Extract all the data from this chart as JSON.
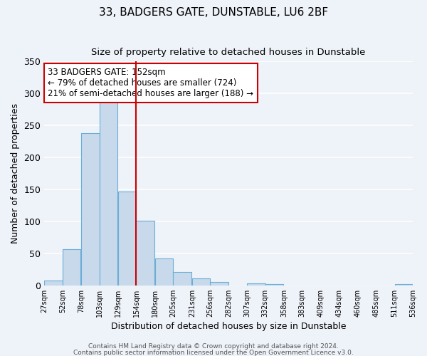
{
  "title": "33, BADGERS GATE, DUNSTABLE, LU6 2BF",
  "subtitle": "Size of property relative to detached houses in Dunstable",
  "xlabel": "Distribution of detached houses by size in Dunstable",
  "ylabel": "Number of detached properties",
  "bar_left_edges": [
    27,
    52,
    78,
    103,
    129,
    154,
    180,
    205,
    231,
    256,
    282,
    307,
    332,
    358,
    383,
    409,
    434,
    460,
    485,
    511
  ],
  "bar_heights": [
    8,
    57,
    238,
    290,
    146,
    101,
    42,
    21,
    11,
    5,
    0,
    3,
    2,
    0,
    0,
    0,
    0,
    0,
    0,
    2
  ],
  "bin_width": 25,
  "bar_color": "#c8d9ec",
  "bar_edge_color": "#6aaed6",
  "vline_x": 154,
  "vline_color": "#cc0000",
  "annotation_text": "33 BADGERS GATE: 152sqm\n← 79% of detached houses are smaller (724)\n21% of semi-detached houses are larger (188) →",
  "annotation_box_edgecolor": "#cc0000",
  "annotation_box_facecolor": "white",
  "tick_labels": [
    "27sqm",
    "52sqm",
    "78sqm",
    "103sqm",
    "129sqm",
    "154sqm",
    "180sqm",
    "205sqm",
    "231sqm",
    "256sqm",
    "282sqm",
    "307sqm",
    "332sqm",
    "358sqm",
    "383sqm",
    "409sqm",
    "434sqm",
    "460sqm",
    "485sqm",
    "511sqm",
    "536sqm"
  ],
  "ylim": [
    0,
    350
  ],
  "yticks": [
    0,
    50,
    100,
    150,
    200,
    250,
    300,
    350
  ],
  "footer_line1": "Contains HM Land Registry data © Crown copyright and database right 2024.",
  "footer_line2": "Contains public sector information licensed under the Open Government Licence v3.0.",
  "background_color": "#eef2f9",
  "grid_color": "#ffffff",
  "title_fontsize": 11,
  "subtitle_fontsize": 9.5,
  "xlabel_fontsize": 9,
  "ylabel_fontsize": 9,
  "annotation_fontsize": 8.5,
  "footer_fontsize": 6.5
}
